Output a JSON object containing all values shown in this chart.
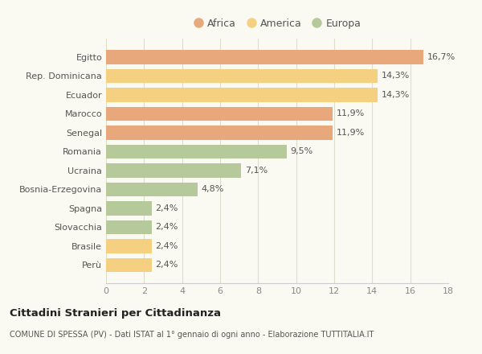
{
  "categories": [
    "Egitto",
    "Rep. Dominicana",
    "Ecuador",
    "Marocco",
    "Senegal",
    "Romania",
    "Ucraina",
    "Bosnia-Erzegovina",
    "Spagna",
    "Slovacchia",
    "Brasile",
    "Perù"
  ],
  "values": [
    16.7,
    14.3,
    14.3,
    11.9,
    11.9,
    9.5,
    7.1,
    4.8,
    2.4,
    2.4,
    2.4,
    2.4
  ],
  "labels": [
    "16,7%",
    "14,3%",
    "14,3%",
    "11,9%",
    "11,9%",
    "9,5%",
    "7,1%",
    "4,8%",
    "2,4%",
    "2,4%",
    "2,4%",
    "2,4%"
  ],
  "colors": [
    "#E8A87C",
    "#F5D080",
    "#F5D080",
    "#E8A87C",
    "#E8A87C",
    "#B5C99A",
    "#B5C99A",
    "#B5C99A",
    "#B5C99A",
    "#B5C99A",
    "#F5D080",
    "#F5D080"
  ],
  "legend": [
    {
      "label": "Africa",
      "color": "#E8A87C"
    },
    {
      "label": "America",
      "color": "#F5D080"
    },
    {
      "label": "Europa",
      "color": "#B5C99A"
    }
  ],
  "xlim": [
    0,
    18
  ],
  "xticks": [
    0,
    2,
    4,
    6,
    8,
    10,
    12,
    14,
    16,
    18
  ],
  "title1": "Cittadini Stranieri per Cittadinanza",
  "title2": "COMUNE DI SPESSA (PV) - Dati ISTAT al 1° gennaio di ogni anno - Elaborazione TUTTITALIA.IT",
  "background_color": "#FAFAF2"
}
